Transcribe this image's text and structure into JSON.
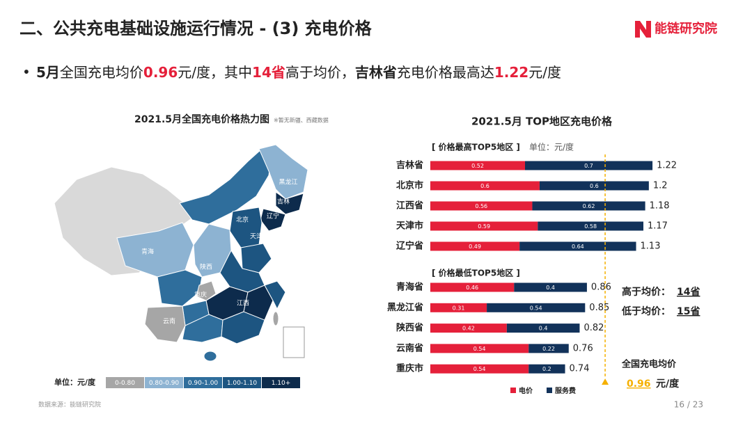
{
  "header": {
    "title": "二、公共充电基础设施运行情况 - (3) 充电价格",
    "logo": "能链研究院"
  },
  "summary": [
    {
      "text": "5月",
      "style": "bold"
    },
    {
      "text": "全国充电均价",
      "style": "plain"
    },
    {
      "text": "0.96",
      "style": "red"
    },
    {
      "text": "元/度，其中",
      "style": "plain"
    },
    {
      "text": "14省",
      "style": "red"
    },
    {
      "text": "高于均价，",
      "style": "plain"
    },
    {
      "text": "吉林省",
      "style": "bold"
    },
    {
      "text": "充电价格最高达",
      "style": "plain"
    },
    {
      "text": "1.22",
      "style": "red"
    },
    {
      "text": "元/度",
      "style": "plain"
    }
  ],
  "map": {
    "title": "2021.5月全国充电价格热力图",
    "note": "※暂无新疆、西藏数据",
    "labels": [
      "黑龙江",
      "吉林",
      "北京",
      "辽宁",
      "天津",
      "青海",
      "陕西",
      "重庆",
      "江西",
      "云南"
    ],
    "legend_unit": "单位：元/度",
    "legend": [
      {
        "label": "0-0.80",
        "color": "#a6a6a6"
      },
      {
        "label": "0.80-0.90",
        "color": "#8db3d2"
      },
      {
        "label": "0.90-1.00",
        "color": "#2f6e9c"
      },
      {
        "label": "1.00-1.10",
        "color": "#1d5581"
      },
      {
        "label": "1.10+",
        "color": "#0d2b4c"
      }
    ]
  },
  "chart_data": {
    "type": "bar",
    "orientation": "horizontal",
    "stacked": true,
    "title": "2021.5月 TOP地区充电价格",
    "categories": [
      "吉林省",
      "北京市",
      "江西省",
      "天津市",
      "辽宁省",
      "青海省",
      "黑龙江省",
      "陕西省",
      "云南省",
      "重庆市"
    ],
    "series": [
      {
        "name": "电价",
        "color": "#e5203a",
        "values": [
          0.52,
          0.6,
          0.56,
          0.59,
          0.49,
          0.46,
          0.31,
          0.42,
          0.54,
          0.54
        ]
      },
      {
        "name": "服务费",
        "color": "#12325a",
        "values": [
          0.7,
          0.6,
          0.62,
          0.58,
          0.64,
          0.4,
          0.54,
          0.4,
          0.22,
          0.2
        ]
      }
    ],
    "totals": [
      1.22,
      1.2,
      1.18,
      1.17,
      1.13,
      0.86,
      0.85,
      0.82,
      0.76,
      0.74
    ],
    "xlim": [
      0,
      1.3
    ],
    "groups": [
      {
        "label": "[ 价格最高TOP5地区 ]",
        "unit": "单位：元/度"
      },
      {
        "label": "[ 价格最低TOP5地区 ]"
      }
    ],
    "average": {
      "value": 0.96,
      "label": "全国充电均价",
      "unit": "元/度",
      "color": "#f5b000"
    },
    "annotations": [
      {
        "label": "高于均价：",
        "value": "14省"
      },
      {
        "label": "低于均价：",
        "value": "15省"
      }
    ]
  },
  "footer": {
    "source": "数据来源：能链研究院",
    "page": "16 / 23"
  }
}
